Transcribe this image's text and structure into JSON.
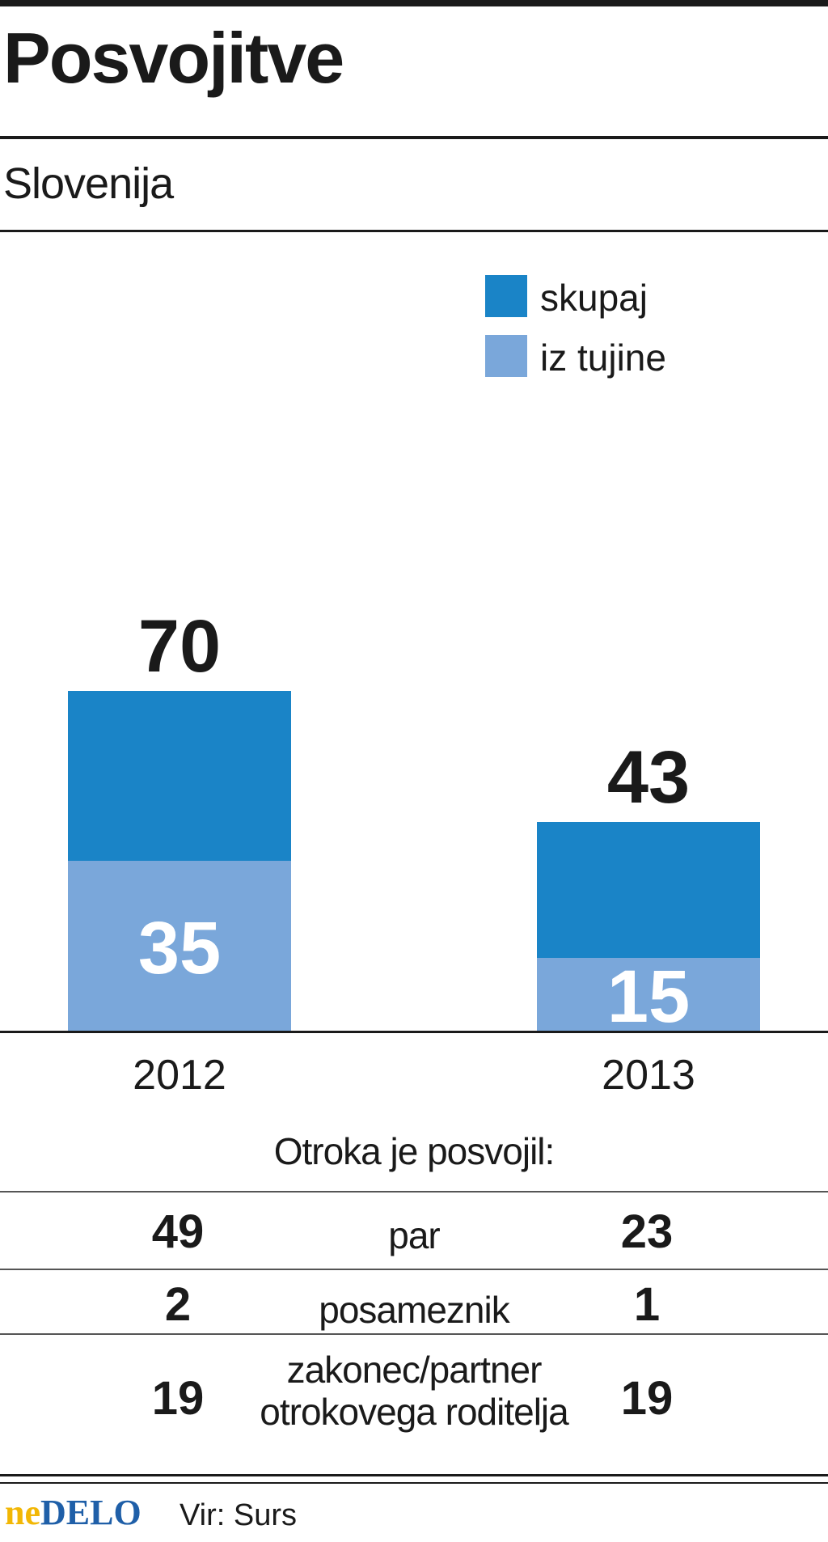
{
  "header": {
    "title": "Posvojitve",
    "subtitle": "Slovenija"
  },
  "chart_data": {
    "type": "bar",
    "categories": [
      "2012",
      "2013"
    ],
    "series": [
      {
        "name": "skupaj",
        "values": [
          70,
          43
        ],
        "color": "#1a84c7"
      },
      {
        "name": "iz tujine",
        "values": [
          35,
          15
        ],
        "color": "#7aa7da"
      }
    ],
    "legend_position": "top-right",
    "grid": false
  },
  "table": {
    "caption": "Otroka je posvojil:",
    "rows": [
      {
        "left": "49",
        "label": "par",
        "right": "23"
      },
      {
        "left": "2",
        "label": "posameznik",
        "right": "1"
      },
      {
        "left": "19",
        "label_lines": [
          "zakonec/partner",
          "otrokovega roditelja"
        ],
        "right": "19"
      }
    ]
  },
  "footer": {
    "logo_ne": "ne",
    "logo_delo": "DELO",
    "source": "Vir: Surs"
  }
}
